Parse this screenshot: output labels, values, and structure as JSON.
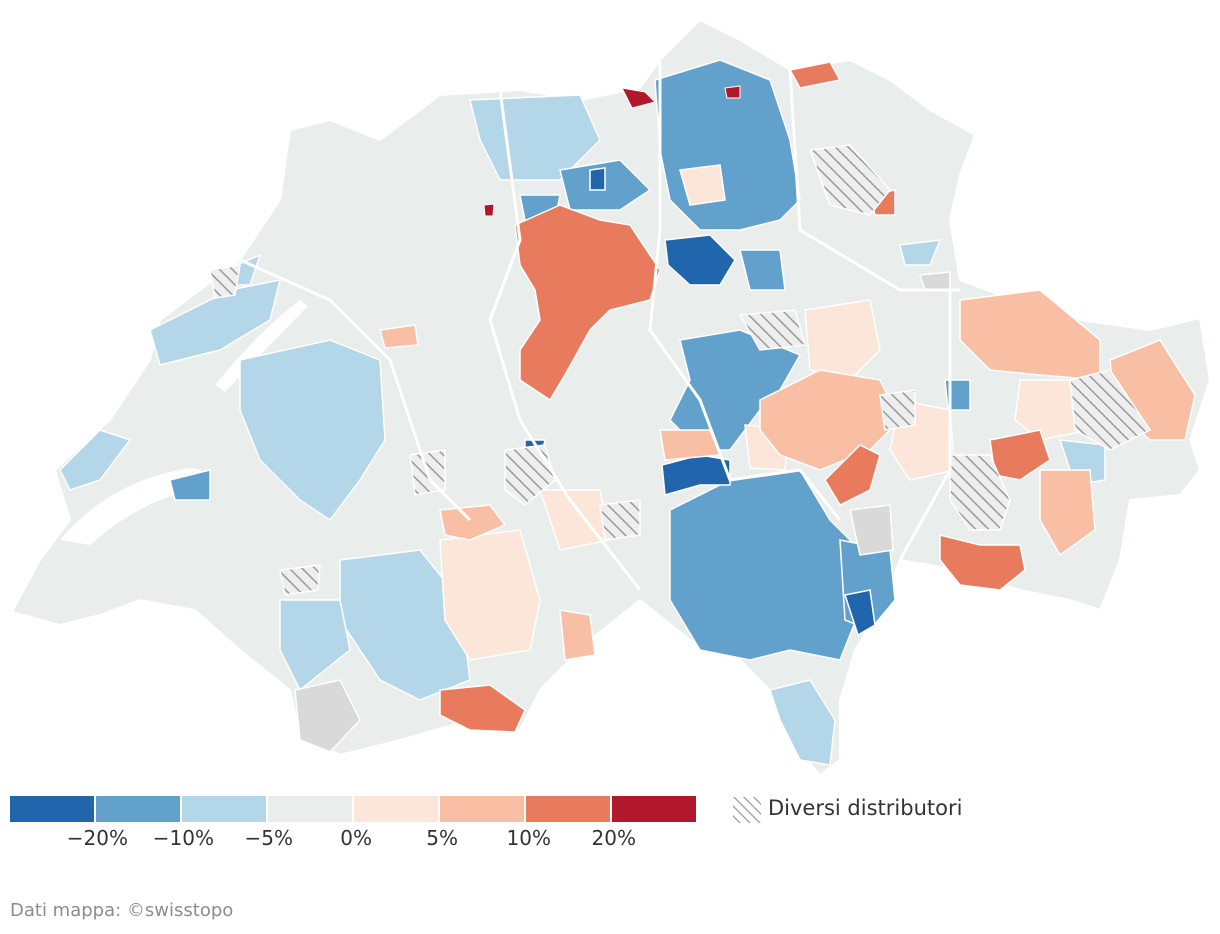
{
  "map": {
    "name": "Switzerland municipalities choropleth",
    "colors": {
      "neutral": "#e9edec",
      "border": "#ffffff",
      "no_data": "#d9d9d9",
      "hatch": "#9a9a9a"
    }
  },
  "legend": {
    "swatches": [
      {
        "color": "#2166ac"
      },
      {
        "color": "#62a1cc"
      },
      {
        "color": "#b4d6e9"
      },
      {
        "color": "#e9edec"
      },
      {
        "color": "#fbe6d9"
      },
      {
        "color": "#f9bfa4"
      },
      {
        "color": "#e87b5e"
      },
      {
        "color": "#b2182b"
      }
    ],
    "ticks": [
      "−20%",
      "−10%",
      "−5%",
      "0%",
      "5%",
      "10%",
      "20%"
    ],
    "hatch_label": "Diversi distributori"
  },
  "credit": "Dati mappa: ©swisstopo"
}
